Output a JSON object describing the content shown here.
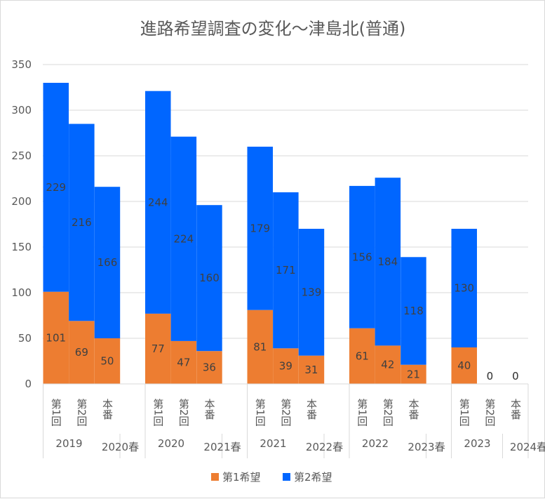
{
  "chart_data": {
    "type": "bar",
    "stacked": true,
    "title": "進路希望調査の変化～津島北(普通)",
    "ylim": [
      0,
      350
    ],
    "yticks": [
      0,
      50,
      100,
      150,
      200,
      250,
      300,
      350
    ],
    "grid": true,
    "legend_position": "bottom",
    "categories": [
      "第1回",
      "第2回",
      "本番",
      "第1回",
      "第2回",
      "本番",
      "第1回",
      "第2回",
      "本番",
      "第1回",
      "第2回",
      "本番",
      "第1回",
      "第2回",
      "本番"
    ],
    "groups": [
      {
        "year": "2019",
        "exam": "2020春"
      },
      {
        "year": "2020",
        "exam": "2021春"
      },
      {
        "year": "2021",
        "exam": "2022春"
      },
      {
        "year": "2022",
        "exam": "2023春"
      },
      {
        "year": "2023",
        "exam": "2024春"
      }
    ],
    "series": [
      {
        "name": "第1希望",
        "color": "#ed7d31",
        "values": [
          101,
          69,
          50,
          77,
          47,
          36,
          81,
          39,
          31,
          61,
          42,
          21,
          40,
          0,
          0
        ]
      },
      {
        "name": "第2希望",
        "color": "#0066ff",
        "values": [
          229,
          216,
          166,
          244,
          224,
          160,
          179,
          171,
          139,
          156,
          184,
          118,
          130,
          0,
          0
        ]
      }
    ]
  }
}
